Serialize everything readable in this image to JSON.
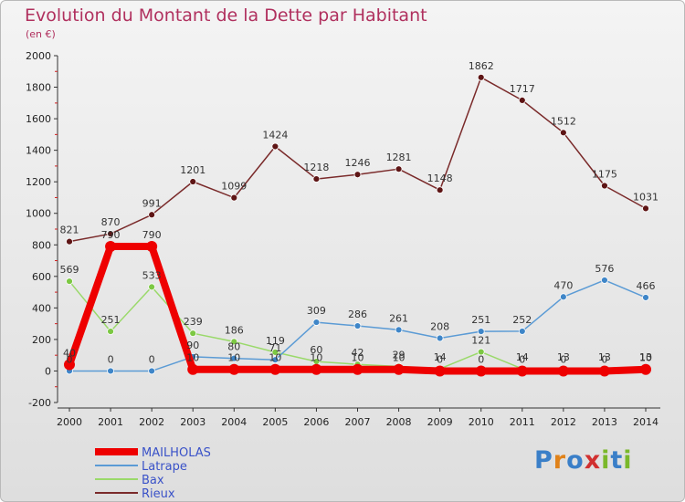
{
  "title": "Evolution du Montant de la Dette par Habitant",
  "subtitle": "(en €)",
  "logo": {
    "text": "Proxiti",
    "colors": [
      "#3a7fc8",
      "#e0821a",
      "#3a7fc8",
      "#d13030",
      "#7ab82a",
      "#3a7fc8",
      "#7ab82a"
    ]
  },
  "chart_data": {
    "type": "line",
    "x": [
      "2000",
      "2001",
      "2002",
      "2003",
      "2004",
      "2005",
      "2006",
      "2007",
      "2008",
      "2009",
      "2010",
      "2011",
      "2012",
      "2013",
      "2014"
    ],
    "ylim": [
      -200,
      2000
    ],
    "yticks": [
      -200,
      0,
      200,
      400,
      600,
      800,
      1000,
      1200,
      1400,
      1600,
      1800,
      2000
    ],
    "grid": false,
    "legend": "bottom-left",
    "series": [
      {
        "name": "MAILHOLAS",
        "color": "#ee0000",
        "width": 8,
        "marker": "#ee0000",
        "marker_r": 6,
        "values": [
          40,
          790,
          790,
          10,
          10,
          10,
          10,
          10,
          10,
          0,
          0,
          0,
          0,
          0,
          10
        ],
        "labels": [
          "40",
          "790",
          "790",
          "10",
          "10",
          "10",
          "10",
          "10",
          "10",
          "0",
          "0",
          "0",
          "0",
          "0",
          "10"
        ]
      },
      {
        "name": "Latrape",
        "color": "#5b9bd5",
        "width": 1.5,
        "marker": "#3f86c8",
        "marker_r": 3.5,
        "values": [
          0,
          0,
          0,
          90,
          80,
          71,
          309,
          286,
          261,
          208,
          251,
          252,
          470,
          576,
          466
        ],
        "labels": [
          "0",
          "0",
          "0",
          "90",
          "80",
          "71",
          "309",
          "286",
          "261",
          "208",
          "251",
          "252",
          "470",
          "576",
          "466"
        ]
      },
      {
        "name": "Bax",
        "color": "#9ad96a",
        "width": 1.5,
        "marker": "#7cc843",
        "marker_r": 3.5,
        "values": [
          569,
          251,
          533,
          239,
          186,
          119,
          60,
          42,
          29,
          14,
          121,
          14,
          13,
          13,
          13
        ],
        "labels": [
          "569",
          "251",
          "533",
          "239",
          "186",
          "119",
          "60",
          "42",
          "29",
          "14",
          "121",
          "14",
          "13",
          "13",
          "13"
        ]
      },
      {
        "name": "Rieux",
        "color": "#7a2a2a",
        "width": 1.5,
        "marker": "#5e1515",
        "marker_r": 3.5,
        "values": [
          821,
          870,
          991,
          1201,
          1099,
          1424,
          1218,
          1246,
          1281,
          1148,
          1862,
          1717,
          1512,
          1175,
          1031
        ],
        "labels": [
          "821",
          "870",
          "991",
          "1201",
          "1099",
          "1424",
          "1218",
          "1246",
          "1281",
          "1148",
          "1862",
          "1717",
          "1512",
          "1175",
          "1031"
        ]
      }
    ]
  }
}
